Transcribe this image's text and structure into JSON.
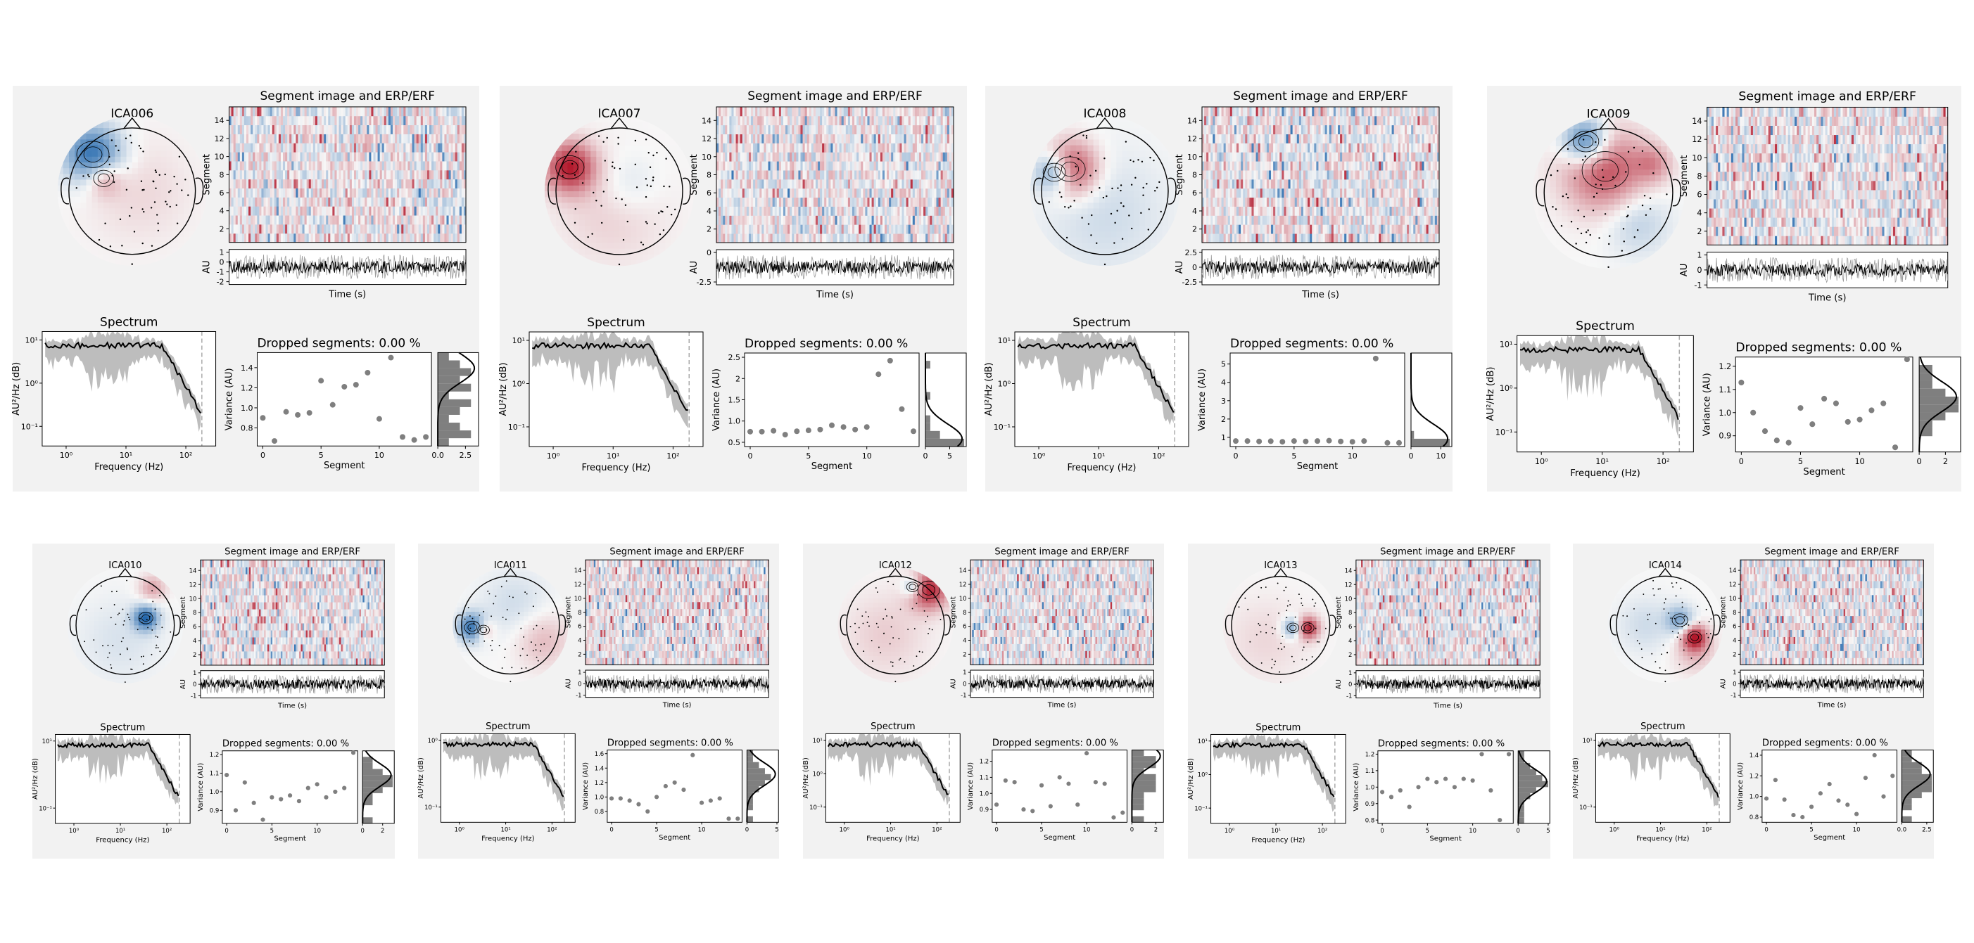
{
  "labels": {
    "segment_image_title": "Segment image and ERP/ERF",
    "segment_axis": "Segment",
    "au_axis": "AU",
    "time_axis": "Time (s)",
    "spectrum_title": "Spectrum",
    "psd_axis": "AU²/Hz (dB)",
    "frequency_axis": "Frequency (Hz)",
    "variance_axis": "Variance (AU)",
    "dropped_prefix": "Dropped segments: "
  },
  "colors": {
    "panel_bg": "#f2f2f2",
    "red": "#b2182b",
    "blue": "#2166ac",
    "point": "#7f7f7f",
    "hist": "#7f7f7f"
  },
  "chart_data": [
    {
      "type": "ica_properties",
      "component": "ICA006",
      "dropped": "0.00 %",
      "segment_ticks": [
        2,
        4,
        6,
        8,
        10,
        12,
        14
      ],
      "au_ticks": [
        1,
        0,
        -1,
        -2
      ],
      "psd_ticks": [
        "10¹",
        "10⁰",
        "10⁻¹"
      ],
      "freq_ticks": [
        "10⁰",
        "10¹",
        "10²"
      ],
      "var_ticks": [
        0.8,
        1.0,
        1.2,
        1.4
      ],
      "var_ylim": [
        0.62,
        1.55
      ],
      "variance": [
        0.9,
        0.67,
        0.96,
        0.93,
        0.95,
        1.27,
        1.03,
        1.21,
        1.23,
        1.35,
        0.89,
        1.5,
        0.71,
        0.68,
        0.71
      ],
      "seg_xticks": [
        0,
        5,
        10
      ],
      "hist_ticks": [
        0.0,
        2.5
      ],
      "hist_max": 3.5,
      "hist_counts": [
        1,
        2,
        3,
        2,
        3,
        1,
        3,
        2,
        1,
        2,
        3,
        1
      ],
      "topo_sources": [
        {
          "x": -0.62,
          "y": -0.58,
          "v": -1,
          "r": 0.32
        },
        {
          "x": -0.45,
          "y": -0.2,
          "v": 0.5,
          "r": 0.2
        },
        {
          "x": 0.1,
          "y": 0.0,
          "v": 0.15,
          "r": 0.6
        }
      ]
    },
    {
      "type": "ica_properties",
      "component": "ICA007",
      "dropped": "0.00 %",
      "segment_ticks": [
        2,
        4,
        6,
        8,
        10,
        12,
        14
      ],
      "au_ticks": [
        0,
        -2.5
      ],
      "psd_ticks": [
        "10¹",
        "10⁰",
        "10⁻¹"
      ],
      "freq_ticks": [
        "10⁰",
        "10¹",
        "10²"
      ],
      "var_ticks": [
        0.5,
        1.0,
        1.5,
        2.0,
        2.5
      ],
      "var_ylim": [
        0.4,
        2.6
      ],
      "variance": [
        0.75,
        0.75,
        0.77,
        0.68,
        0.76,
        0.78,
        0.8,
        0.9,
        0.86,
        0.8,
        0.86,
        2.1,
        2.42,
        1.28,
        0.76
      ],
      "seg_xticks": [
        0,
        5,
        10
      ],
      "hist_ticks": [
        0,
        5
      ],
      "hist_max": 8,
      "hist_counts": [
        0,
        1,
        0,
        0,
        0,
        1,
        0,
        0,
        1,
        1,
        3,
        8
      ],
      "topo_sources": [
        {
          "x": -0.78,
          "y": -0.38,
          "v": 1,
          "r": 0.28
        },
        {
          "x": 0.15,
          "y": -0.1,
          "v": -0.2,
          "r": 0.35
        },
        {
          "x": -0.1,
          "y": 0.3,
          "v": 0.2,
          "r": 0.6
        }
      ]
    },
    {
      "type": "ica_properties",
      "component": "ICA008",
      "dropped": "0.00 %",
      "segment_ticks": [
        2,
        4,
        6,
        8,
        10,
        12,
        14
      ],
      "au_ticks": [
        2.5,
        0,
        -2.5
      ],
      "psd_ticks": [
        "10¹",
        "10⁰",
        "10⁻¹"
      ],
      "freq_ticks": [
        "10⁰",
        "10¹",
        "10²"
      ],
      "var_ticks": [
        1,
        2,
        3,
        4,
        5
      ],
      "var_ylim": [
        0.5,
        5.6
      ],
      "variance": [
        0.8,
        0.8,
        0.78,
        0.79,
        0.76,
        0.8,
        0.78,
        0.8,
        0.82,
        0.78,
        0.76,
        0.8,
        5.3,
        0.7,
        0.7
      ],
      "seg_xticks": [
        0,
        5,
        10
      ],
      "hist_ticks": [
        0,
        10
      ],
      "hist_max": 13,
      "hist_counts": [
        0,
        0,
        0,
        0,
        0,
        0,
        0,
        0,
        0,
        0,
        1,
        13
      ],
      "topo_sources": [
        {
          "x": -0.55,
          "y": -0.35,
          "v": 1,
          "r": 0.3
        },
        {
          "x": -0.8,
          "y": -0.3,
          "v": -0.9,
          "r": 0.22
        },
        {
          "x": 0.0,
          "y": 0.35,
          "v": -0.2,
          "r": 0.7
        }
      ]
    },
    {
      "type": "ica_properties",
      "component": "ICA009",
      "dropped": "0.00 %",
      "segment_ticks": [
        2,
        4,
        6,
        8,
        10,
        12,
        14
      ],
      "au_ticks": [
        1,
        0,
        -1
      ],
      "psd_ticks": [
        "10¹",
        "10⁰",
        "10⁻¹"
      ],
      "freq_ticks": [
        "10⁰",
        "10¹",
        "10²"
      ],
      "var_ticks": [
        0.9,
        1.0,
        1.1,
        1.2
      ],
      "var_ylim": [
        0.83,
        1.24
      ],
      "variance": [
        1.13,
        1.0,
        0.92,
        0.88,
        0.87,
        1.02,
        0.95,
        1.06,
        1.04,
        0.96,
        0.97,
        1.01,
        1.04,
        0.85,
        1.23
      ],
      "seg_xticks": [
        0,
        5,
        10
      ],
      "hist_ticks": [
        0,
        2
      ],
      "hist_max": 3,
      "hist_counts": [
        0,
        1,
        1,
        1,
        2,
        3,
        3,
        2,
        1,
        1,
        0,
        0
      ],
      "topo_sources": [
        {
          "x": -0.05,
          "y": -0.35,
          "v": 0.8,
          "r": 0.45
        },
        {
          "x": -0.35,
          "y": -0.8,
          "v": -1,
          "r": 0.25
        },
        {
          "x": 0.45,
          "y": 0.45,
          "v": -0.3,
          "r": 0.35
        },
        {
          "x": 0.7,
          "y": -0.45,
          "v": 0.4,
          "r": 0.2
        }
      ]
    },
    {
      "type": "ica_properties",
      "component": "ICA010",
      "dropped": "0.00 %",
      "segment_ticks": [
        2,
        4,
        6,
        8,
        10,
        12,
        14
      ],
      "au_ticks": [
        1,
        0,
        -1
      ],
      "psd_ticks": [
        "10¹",
        "10⁻¹"
      ],
      "freq_ticks": [
        "10⁰",
        "10¹",
        "10²"
      ],
      "var_ticks": [
        0.9,
        1.0,
        1.1,
        1.2
      ],
      "var_ylim": [
        0.83,
        1.22
      ],
      "variance": [
        1.09,
        0.9,
        1.05,
        0.94,
        0.85,
        0.97,
        0.96,
        0.98,
        0.95,
        1.02,
        1.04,
        0.97,
        1.0,
        1.02,
        1.21
      ],
      "seg_xticks": [
        0,
        5,
        10
      ],
      "hist_ticks": [
        0,
        2
      ],
      "hist_max": 3,
      "hist_counts": [
        0,
        1,
        1,
        2,
        3,
        3,
        2,
        1,
        1,
        0,
        0,
        1
      ],
      "topo_sources": [
        {
          "x": 0.42,
          "y": -0.15,
          "v": -1,
          "r": 0.18
        },
        {
          "x": 0.55,
          "y": -0.75,
          "v": 0.4,
          "r": 0.2
        },
        {
          "x": -0.1,
          "y": 0.3,
          "v": -0.15,
          "r": 0.6
        }
      ]
    },
    {
      "type": "ica_properties",
      "component": "ICA011",
      "dropped": "0.00 %",
      "segment_ticks": [
        2,
        4,
        6,
        8,
        10,
        12,
        14
      ],
      "au_ticks": [
        1,
        0,
        -1
      ],
      "psd_ticks": [
        "10⁰",
        "10⁻¹"
      ],
      "freq_ticks": [
        "10⁰",
        "10¹",
        "10²"
      ],
      "var_ticks": [
        0.8,
        1.0,
        1.2,
        1.4,
        1.6
      ],
      "var_ylim": [
        0.65,
        1.65
      ],
      "variance": [
        0.98,
        0.98,
        0.95,
        0.9,
        0.8,
        1.0,
        1.15,
        1.2,
        1.1,
        1.58,
        0.92,
        0.95,
        0.98,
        0.7,
        0.7
      ],
      "seg_xticks": [
        0,
        5,
        10
      ],
      "hist_ticks": [
        0,
        5
      ],
      "hist_max": 5,
      "hist_counts": [
        1,
        1,
        2,
        3,
        4,
        3,
        2,
        1,
        1,
        1,
        0,
        1
      ],
      "topo_sources": [
        {
          "x": -0.78,
          "y": 0.05,
          "v": -1,
          "r": 0.2
        },
        {
          "x": -0.55,
          "y": 0.1,
          "v": 0.5,
          "r": 0.15
        },
        {
          "x": 0.1,
          "y": -0.4,
          "v": -0.2,
          "r": 0.5
        },
        {
          "x": 0.65,
          "y": 0.3,
          "v": 0.3,
          "r": 0.4
        }
      ]
    },
    {
      "type": "ica_properties",
      "component": "ICA012",
      "dropped": "0.00 %",
      "segment_ticks": [
        2,
        4,
        6,
        8,
        10,
        12,
        14
      ],
      "au_ticks": [
        1,
        0,
        -1
      ],
      "psd_ticks": [
        "10¹",
        "10⁰",
        "10⁻¹"
      ],
      "freq_ticks": [
        "10⁰",
        "10¹",
        "10²"
      ],
      "var_ticks": [
        0.9,
        1.0,
        1.1,
        1.2
      ],
      "var_ylim": [
        0.82,
        1.27
      ],
      "variance": [
        0.93,
        1.08,
        1.07,
        0.9,
        0.89,
        1.05,
        0.92,
        1.1,
        1.06,
        0.93,
        1.25,
        1.07,
        1.06,
        0.85,
        0.88
      ],
      "seg_xticks": [
        0,
        5,
        10
      ],
      "hist_ticks": [
        0,
        2
      ],
      "hist_max": 2.5,
      "hist_counts": [
        1,
        2,
        2,
        1,
        2,
        2,
        2,
        1,
        1,
        1,
        0,
        1
      ],
      "topo_sources": [
        {
          "x": 0.68,
          "y": -0.72,
          "v": 1,
          "r": 0.28
        },
        {
          "x": 0.35,
          "y": -0.78,
          "v": -0.6,
          "r": 0.15
        },
        {
          "x": -0.2,
          "y": 0.2,
          "v": 0.2,
          "r": 0.6
        }
      ]
    },
    {
      "type": "ica_properties",
      "component": "ICA013",
      "dropped": "0.00 %",
      "segment_ticks": [
        2,
        4,
        6,
        8,
        10,
        12,
        14
      ],
      "au_ticks": [
        1,
        0,
        -1
      ],
      "psd_ticks": [
        "10¹",
        "10⁰",
        "10⁻¹"
      ],
      "freq_ticks": [
        "10⁰",
        "10¹",
        "10²"
      ],
      "var_ticks": [
        0.8,
        0.9,
        1.0,
        1.1,
        1.2
      ],
      "var_ylim": [
        0.78,
        1.22
      ],
      "variance": [
        0.97,
        0.94,
        0.98,
        0.88,
        1.0,
        1.05,
        1.03,
        1.05,
        1.0,
        1.05,
        1.04,
        1.2,
        0.98,
        0.8,
        1.2
      ],
      "seg_xticks": [
        0,
        5,
        10
      ],
      "hist_ticks": [
        0,
        5
      ],
      "hist_max": 5,
      "hist_counts": [
        1,
        1,
        2,
        3,
        4,
        5,
        3,
        2,
        1,
        1,
        1,
        1
      ],
      "topo_sources": [
        {
          "x": 0.55,
          "y": 0.05,
          "v": 1,
          "r": 0.16
        },
        {
          "x": 0.25,
          "y": 0.05,
          "v": -0.7,
          "r": 0.15
        },
        {
          "x": -0.3,
          "y": 0.3,
          "v": 0.15,
          "r": 0.6
        }
      ]
    },
    {
      "type": "ica_properties",
      "component": "ICA014",
      "dropped": "0.00 %",
      "segment_ticks": [
        2,
        4,
        6,
        8,
        10,
        12,
        14
      ],
      "au_ticks": [
        1,
        0,
        -1
      ],
      "psd_ticks": [
        "10¹",
        "10⁻¹"
      ],
      "freq_ticks": [
        "10⁰",
        "10¹",
        "10²"
      ],
      "var_ticks": [
        0.8,
        1.0,
        1.2,
        1.4
      ],
      "var_ylim": [
        0.75,
        1.45
      ],
      "variance": [
        0.98,
        1.16,
        0.97,
        0.82,
        0.8,
        0.9,
        1.03,
        1.12,
        0.96,
        0.92,
        0.83,
        1.18,
        1.4,
        1.0,
        1.2
      ],
      "seg_xticks": [
        0,
        5,
        10
      ],
      "hist_ticks": [
        0.0,
        2.5
      ],
      "hist_max": 3,
      "hist_counts": [
        1,
        1,
        2,
        2,
        3,
        3,
        3,
        2,
        1,
        1,
        0,
        1
      ],
      "topo_sources": [
        {
          "x": 0.6,
          "y": 0.25,
          "v": 1,
          "r": 0.18
        },
        {
          "x": 0.3,
          "y": -0.1,
          "v": -0.6,
          "r": 0.2
        },
        {
          "x": -0.4,
          "y": 0.0,
          "v": -0.2,
          "r": 0.4
        },
        {
          "x": 0.6,
          "y": 0.55,
          "v": 0.3,
          "r": 0.3
        }
      ]
    }
  ]
}
